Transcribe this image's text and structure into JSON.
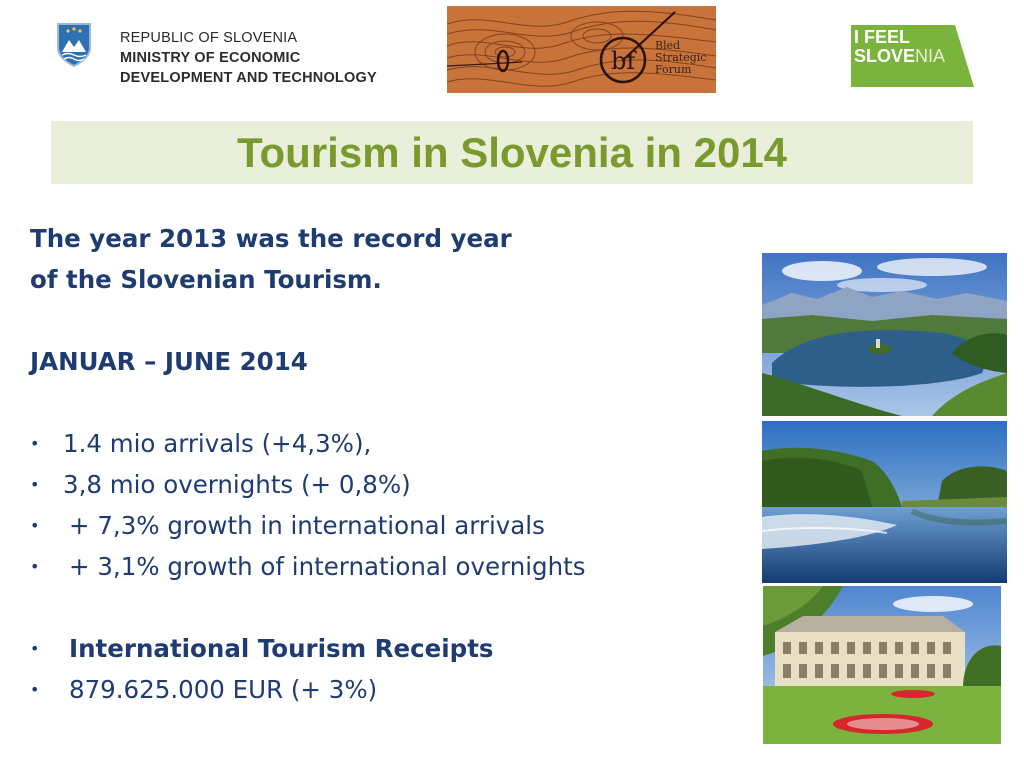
{
  "header": {
    "ministry": {
      "line1": "REPUBLIC OF SLOVENIA",
      "line2": "MINISTRY OF ECONOMIC",
      "line3": "DEVELOPMENT AND TECHNOLOGY"
    },
    "bsf_logo": {
      "line1": "Bled",
      "line2": "Strategic",
      "line3": "Forum"
    },
    "ifs_logo": {
      "line1": "I FEEL",
      "part1": "S",
      "part2": "LOVE",
      "part3": "NIA"
    }
  },
  "title": "Tourism in Slovenia in 2014",
  "body": {
    "intro_line1": "The year 2013 was the record year",
    "intro_line2": "of the Slovenian Tourism.",
    "period": "JANUAR – JUNE 2014",
    "bullet_symbol": "•",
    "stats": [
      "1.4 mio arrivals (+4,3%),",
      "3,8 mio overnights (+ 0,8%)",
      "+ 7,3% growth in international arrivals",
      "+ 3,1% growth of international overnights"
    ],
    "receipts_title": "International Tourism Receipts",
    "receipts_value": "879.625.000 EUR (+ 3%)"
  },
  "colors": {
    "title_green": "#7a9a2d",
    "title_band": "#e9efdb",
    "body_blue": "#1f3c72",
    "ifs_green": "#7ab43c",
    "bsf_orange": "#c8733a"
  }
}
